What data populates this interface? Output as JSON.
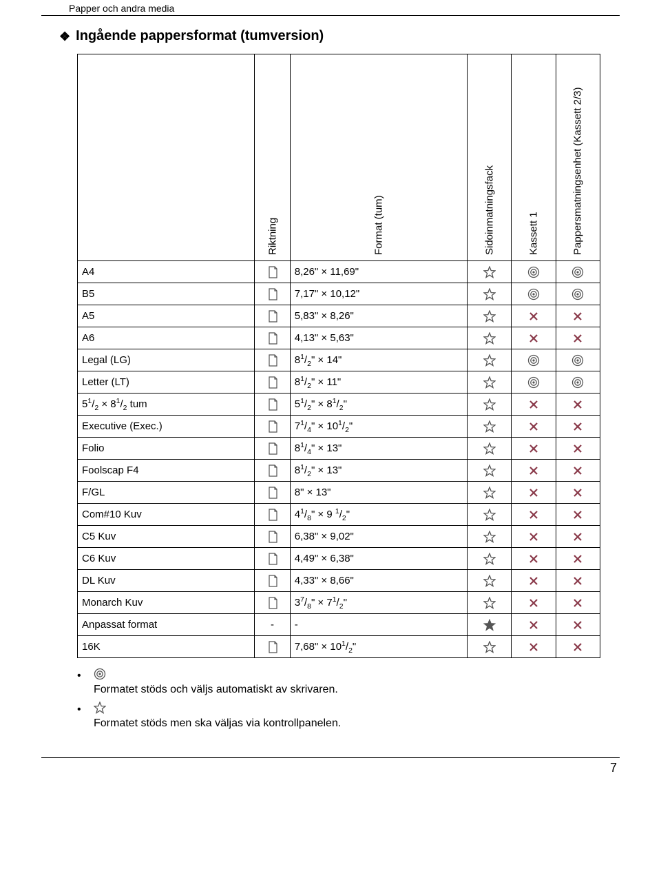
{
  "header": {
    "running": "Papper och andra media",
    "title": "Ingående pappersformat (tumversion)"
  },
  "columns": {
    "dir": "Riktning",
    "fmt": "Format (tum)",
    "side": "Sidoinmatningsfack",
    "k1": "Kassett 1",
    "k23": "Pappersmatningsenhet (Kassett 2/3)"
  },
  "rows": [
    {
      "name": "A4",
      "dir": "portrait",
      "fmt": "8,26\" × 11,69\"",
      "side": "star-o",
      "k1": "target",
      "k23": "target"
    },
    {
      "name": "B5",
      "dir": "portrait",
      "fmt": "7,17\" × 10,12\"",
      "side": "star-o",
      "k1": "target",
      "k23": "target"
    },
    {
      "name": "A5",
      "dir": "portrait",
      "fmt": "5,83\" × 8,26\"",
      "side": "star-o",
      "k1": "x",
      "k23": "x"
    },
    {
      "name": "A6",
      "dir": "portrait",
      "fmt": "4,13\" × 5,63\"",
      "side": "star-o",
      "k1": "x",
      "k23": "x"
    },
    {
      "name": "Legal (LG)",
      "dir": "portrait",
      "fmt": "8<sup>1</sup>/<sub>2</sub>\" × 14\"",
      "side": "star-o",
      "k1": "target",
      "k23": "target"
    },
    {
      "name": "Letter (LT)",
      "dir": "portrait",
      "fmt": "8<sup>1</sup>/<sub>2</sub>\" × 11\"",
      "side": "star-o",
      "k1": "target",
      "k23": "target"
    },
    {
      "name": "5<sup>1</sup>/<sub>2</sub> × 8<sup>1</sup>/<sub>2</sub> tum",
      "dir": "portrait",
      "fmt": "5<sup>1</sup>/<sub>2</sub>\" × 8<sup>1</sup>/<sub>2</sub>\"",
      "side": "star-o",
      "k1": "x",
      "k23": "x"
    },
    {
      "name": "Executive (Exec.)",
      "dir": "portrait",
      "fmt": "7<sup>1</sup>/<sub>4</sub>\" × 10<sup>1</sup>/<sub>2</sub>\"",
      "side": "star-o",
      "k1": "x",
      "k23": "x"
    },
    {
      "name": "Folio",
      "dir": "portrait",
      "fmt": "8<sup>1</sup>/<sub>4</sub>\" × 13\"",
      "side": "star-o",
      "k1": "x",
      "k23": "x"
    },
    {
      "name": "Foolscap F4",
      "dir": "portrait",
      "fmt": "8<sup>1</sup>/<sub>2</sub>\" × 13\"",
      "side": "star-o",
      "k1": "x",
      "k23": "x"
    },
    {
      "name": "F/GL",
      "dir": "portrait",
      "fmt": "8\" × 13\"",
      "side": "star-o",
      "k1": "x",
      "k23": "x"
    },
    {
      "name": "Com#10 Kuv",
      "dir": "portrait",
      "fmt": "4<sup>1</sup>/<sub>8</sub>\" × 9 <sup>1</sup>/<sub>2</sub>\"",
      "side": "star-o",
      "k1": "x",
      "k23": "x"
    },
    {
      "name": "C5 Kuv",
      "dir": "portrait",
      "fmt": "6,38\" × 9,02\"",
      "side": "star-o",
      "k1": "x",
      "k23": "x"
    },
    {
      "name": "C6 Kuv",
      "dir": "portrait",
      "fmt": "4,49\" × 6,38\"",
      "side": "star-o",
      "k1": "x",
      "k23": "x"
    },
    {
      "name": "DL Kuv",
      "dir": "portrait",
      "fmt": "4,33\" × 8,66\"",
      "side": "star-o",
      "k1": "x",
      "k23": "x"
    },
    {
      "name": "Monarch Kuv",
      "dir": "portrait",
      "fmt": "3<sup>7</sup>/<sub>8</sub>\" × 7<sup>1</sup>/<sub>2</sub>\"",
      "side": "star-o",
      "k1": "x",
      "k23": "x"
    },
    {
      "name": "Anpassat format",
      "dir": "-",
      "fmt": "-",
      "side": "star-f",
      "k1": "x",
      "k23": "x"
    },
    {
      "name": "16K",
      "dir": "portrait",
      "fmt": "7,68\" × 10<sup>1</sup>/<sub>2</sub>\"",
      "side": "star-o",
      "k1": "x",
      "k23": "x"
    }
  ],
  "legend": {
    "auto": "Formatet stöds och väljs automatiskt av skrivaren.",
    "manual": "Formatet stöds men ska väljas via kontrollpanelen."
  },
  "footer": {
    "page": "7"
  },
  "colors": {
    "icon_stroke": "#555555",
    "star_fill": "#555555",
    "x_color": "#8a3a4a",
    "text": "#000000"
  }
}
